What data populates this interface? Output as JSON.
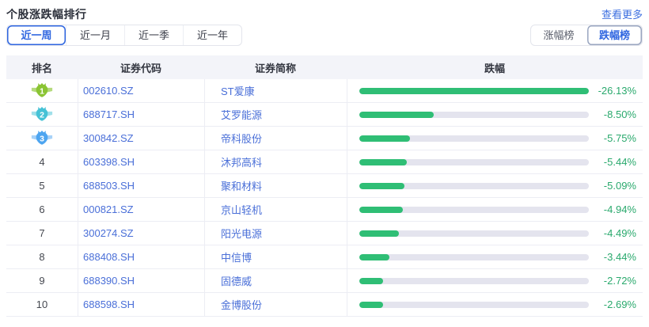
{
  "panel": {
    "title": "个股涨跌幅排行",
    "more_link": "查看更多"
  },
  "period_tabs": {
    "items": [
      {
        "label": "近一周",
        "active": true
      },
      {
        "label": "近一月",
        "active": false
      },
      {
        "label": "近一季",
        "active": false
      },
      {
        "label": "近一年",
        "active": false
      }
    ]
  },
  "board_toggle": {
    "items": [
      {
        "label": "涨幅榜",
        "active": false
      },
      {
        "label": "跌幅榜",
        "active": true
      }
    ]
  },
  "table": {
    "headers": {
      "rank": "排名",
      "code": "证券代码",
      "name": "证券简称",
      "change": "跌幅"
    },
    "max_abs_change": 26.13,
    "rows": [
      {
        "rank": 1,
        "code": "002610.SZ",
        "name": "ST爱康",
        "change_label": "-26.13%",
        "change_value": -26.13
      },
      {
        "rank": 2,
        "code": "688717.SH",
        "name": "艾罗能源",
        "change_label": "-8.50%",
        "change_value": -8.5
      },
      {
        "rank": 3,
        "code": "300842.SZ",
        "name": "帝科股份",
        "change_label": "-5.75%",
        "change_value": -5.75
      },
      {
        "rank": 4,
        "code": "603398.SH",
        "name": "沐邦高科",
        "change_label": "-5.44%",
        "change_value": -5.44
      },
      {
        "rank": 5,
        "code": "688503.SH",
        "name": "聚和材料",
        "change_label": "-5.09%",
        "change_value": -5.09
      },
      {
        "rank": 6,
        "code": "000821.SZ",
        "name": "京山轻机",
        "change_label": "-4.94%",
        "change_value": -4.94
      },
      {
        "rank": 7,
        "code": "300274.SZ",
        "name": "阳光电源",
        "change_label": "-4.49%",
        "change_value": -4.49
      },
      {
        "rank": 8,
        "code": "688408.SH",
        "name": "中信博",
        "change_label": "-3.44%",
        "change_value": -3.44
      },
      {
        "rank": 9,
        "code": "688390.SH",
        "name": "固德威",
        "change_label": "-2.72%",
        "change_value": -2.72
      },
      {
        "rank": 10,
        "code": "688598.SH",
        "name": "金博股份",
        "change_label": "-2.69%",
        "change_value": -2.69
      }
    ]
  },
  "icons": {
    "rank1": "gold-medal-icon",
    "rank2": "silver-medal-icon",
    "rank3": "bronze-medal-icon"
  },
  "colors": {
    "accent_blue": "#2f66e0",
    "link_blue": "#3d6fe0",
    "stock_link_blue": "#4a6fd8",
    "bar_fill_green": "#2fbe75",
    "bar_track": "#e4e4ee",
    "percent_green": "#2aa96d",
    "header_bg": "#f3f4f9",
    "row_border": "#ecedf4",
    "medal1_green": "#8ac433",
    "medal2_teal": "#46c2d6",
    "medal3_blue": "#4da5f0"
  }
}
